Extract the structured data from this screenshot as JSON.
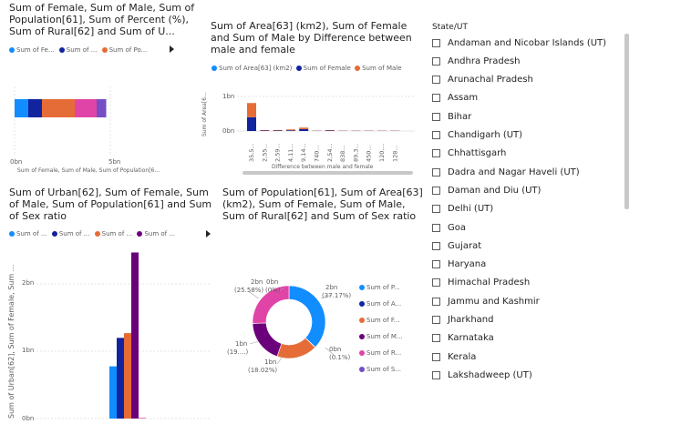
{
  "colors": {
    "blue": "#118DFF",
    "navy": "#12239E",
    "orange": "#E66C37",
    "purple": "#6B007B",
    "pink": "#E044A7",
    "violet": "#744EC2"
  },
  "visual1": {
    "title": "Sum of Female, Sum of Male, Sum of Population[61], Sum of Percent (%), Sum of Rural[62] and Sum of U...",
    "legend": [
      "Sum of Fe...",
      "Sum of ...",
      "Sum of Po..."
    ],
    "x_ticks": [
      "0bn",
      "5bn"
    ],
    "x_label": "Sum of Female, Sum of Male, Sum of Population[6..."
  },
  "visual2": {
    "title": "Sum of Area[63] (km2), Sum of Female and Sum of Male by Difference between male and female",
    "legend": [
      "Sum of Area[63] (km2)",
      "Sum of Female",
      "Sum of Male"
    ],
    "y_ticks": [
      "1bn",
      "0bn"
    ],
    "y_label": "Sum of Area[6...",
    "x_categories": [
      "35,5...",
      "2,55...",
      "2,59...",
      "4,11...",
      "9,14...",
      "740...",
      "2,54...",
      "838...",
      "89,3...",
      "450...",
      "120,...",
      "128..."
    ],
    "x_label": "Difference between male and female"
  },
  "visual3": {
    "title": "Sum of Urban[62], Sum of Female, Sum of Male, Sum of Population[61] and Sum of Sex ratio",
    "legend": [
      "Sum of ...",
      "Sum of ...",
      "Sum of ...",
      "Sum of ..."
    ],
    "y_ticks": [
      "2bn",
      "1bn",
      "0bn"
    ],
    "y_label": "Sum of Urban[62], Sum of Female, Sum ..."
  },
  "visual4": {
    "title": "Sum of Population[61], Sum of Area[63] (km2), Sum of Female, Sum of Male, Sum of Rural[62] and Sum of Sex ratio",
    "legend": [
      "Sum of P...",
      "Sum of A...",
      "Sum of F...",
      "Sum of M...",
      "Sum of R...",
      "Sum of S..."
    ],
    "labels": {
      "tl1": "2bn",
      "tl2": "(25.58%)",
      "tm1": "0bn",
      "tm2": "(0%)",
      "tr1": "2bn",
      "tr2": "(37.17%)",
      "r1": "0bn",
      "r2": "(0.1%)",
      "l1": "1bn",
      "l2": "(19....)",
      "b1": "1bn",
      "b2": "(18.02%)"
    }
  },
  "slicer": {
    "title": "State/UT",
    "items": [
      "Andaman and Nicobar Islands (UT)",
      "Andhra Pradesh",
      "Arunachal Pradesh",
      "Assam",
      "Bihar",
      "Chandigarh (UT)",
      "Chhattisgarh",
      "Dadra and Nagar Haveli (UT)",
      "Daman and Diu (UT)",
      "Delhi (UT)",
      "Goa",
      "Gujarat",
      "Haryana",
      "Himachal Pradesh",
      "Jammu and Kashmir",
      "Jharkhand",
      "Karnataka",
      "Kerala",
      "Lakshadweep (UT)"
    ]
  },
  "chart_data": [
    {
      "type": "bar",
      "orientation": "horizontal-stacked",
      "title": "Sum of Female, Sum of Male, Sum of Population[61], Sum of Percent (%), Sum of Rural[62] and Sum of U...",
      "categories": [
        ""
      ],
      "series": [
        {
          "name": "Sum of Fe...",
          "values": [
            0.5
          ]
        },
        {
          "name": "Sum of ...",
          "values": [
            0.5
          ]
        },
        {
          "name": "Sum of Po...",
          "values": [
            1.2
          ]
        },
        {
          "name": "",
          "values": [
            0.8
          ]
        },
        {
          "name": "",
          "values": [
            0.35
          ]
        }
      ],
      "xlim": [
        0,
        7
      ]
    },
    {
      "type": "bar",
      "title": "Sum of Area[63] (km2), Sum of Female and Sum of Male by Difference between male and female",
      "categories": [
        "35,5...",
        "2,55...",
        "2,59...",
        "4,11...",
        "9,14...",
        "740...",
        "2,54...",
        "838...",
        "89,3...",
        "450...",
        "120,...",
        "128..."
      ],
      "series": [
        {
          "name": "Sum of Area[63] (km2)",
          "values": [
            0,
            0,
            0,
            0,
            0,
            0,
            0,
            0,
            0,
            0,
            0,
            0
          ]
        },
        {
          "name": "Sum of Female",
          "values": [
            0.6,
            0.02,
            0.02,
            0.03,
            0.08,
            0.01,
            0.02,
            0.01,
            0.01,
            0.01,
            0.01,
            0.01
          ]
        },
        {
          "name": "Sum of Male",
          "values": [
            0.62,
            0.02,
            0.02,
            0.04,
            0.07,
            0.01,
            0.02,
            0.01,
            0.01,
            0.01,
            0.01,
            0.01
          ]
        }
      ],
      "ylim": [
        0,
        1.4
      ]
    },
    {
      "type": "bar",
      "title": "Sum of Urban[62], Sum of Female, Sum of Male, Sum of Population[61] and Sum of Sex ratio",
      "categories": [
        ""
      ],
      "series": [
        {
          "name": "Sum of ...",
          "values": [
            0.77
          ]
        },
        {
          "name": "Sum of ...",
          "values": [
            1.19
          ]
        },
        {
          "name": "Sum of ...",
          "values": [
            1.26
          ]
        },
        {
          "name": "Sum of ...",
          "values": [
            2.45
          ]
        },
        {
          "name": "",
          "values": [
            0.01
          ]
        }
      ],
      "ylim": [
        0,
        2.55
      ]
    },
    {
      "type": "pie",
      "title": "Sum of Population[61], Sum of Area[63] (km2), Sum of Female, Sum of Male, Sum of Rural[62] and Sum of Sex ratio",
      "categories": [
        "Sum of P...",
        "Sum of A...",
        "Sum of F...",
        "Sum of M...",
        "Sum of R...",
        "Sum of S..."
      ],
      "values": [
        37.17,
        0.1,
        18.02,
        19.13,
        25.58,
        0.0
      ]
    }
  ]
}
